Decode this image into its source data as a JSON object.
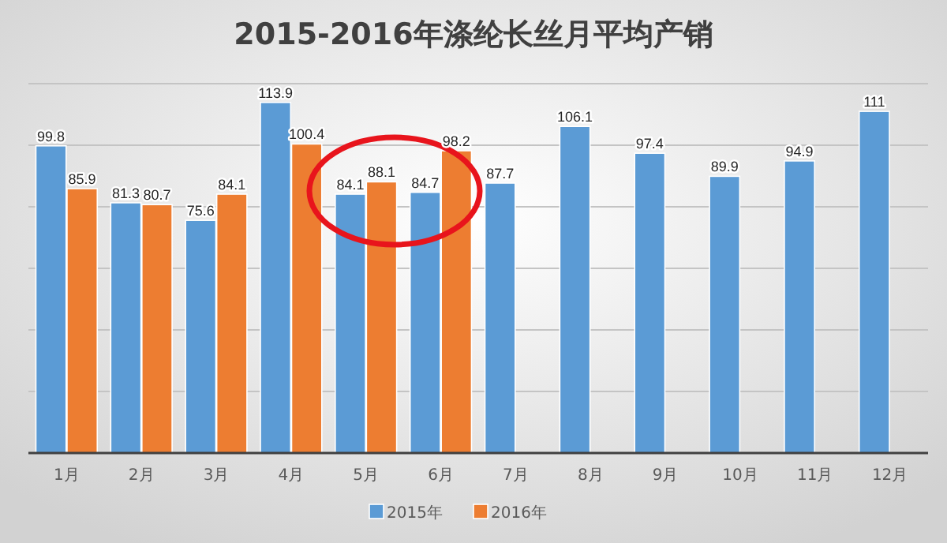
{
  "chart_data": {
    "type": "bar",
    "title": "2015-2016年涤纶长丝月平均产销",
    "categories": [
      "1月",
      "2月",
      "3月",
      "4月",
      "5月",
      "6月",
      "7月",
      "8月",
      "9月",
      "10月",
      "11月",
      "12月"
    ],
    "series": [
      {
        "name": "2015年",
        "color": "#5b9bd5",
        "values": [
          99.8,
          81.3,
          75.6,
          113.9,
          84.1,
          84.7,
          87.7,
          106.1,
          97.4,
          89.9,
          94.9,
          111
        ]
      },
      {
        "name": "2016年",
        "color": "#ed7d31",
        "values": [
          85.9,
          80.7,
          84.1,
          100.4,
          88.1,
          98.2,
          null,
          null,
          null,
          null,
          null,
          null
        ]
      }
    ],
    "ylim": [
      0,
      120
    ],
    "yticks": [
      {
        "value": 0,
        "label": null
      },
      {
        "value": 20,
        "label": null
      },
      {
        "value": 40,
        "label": null
      },
      {
        "value": 60,
        "label": null
      },
      {
        "value": 80,
        "label": null
      },
      {
        "value": 100,
        "label": null
      },
      {
        "value": 120,
        "label": null
      }
    ],
    "grid": "y",
    "data_labels": true,
    "legend": "bottom",
    "tick_labels": "x"
  }
}
